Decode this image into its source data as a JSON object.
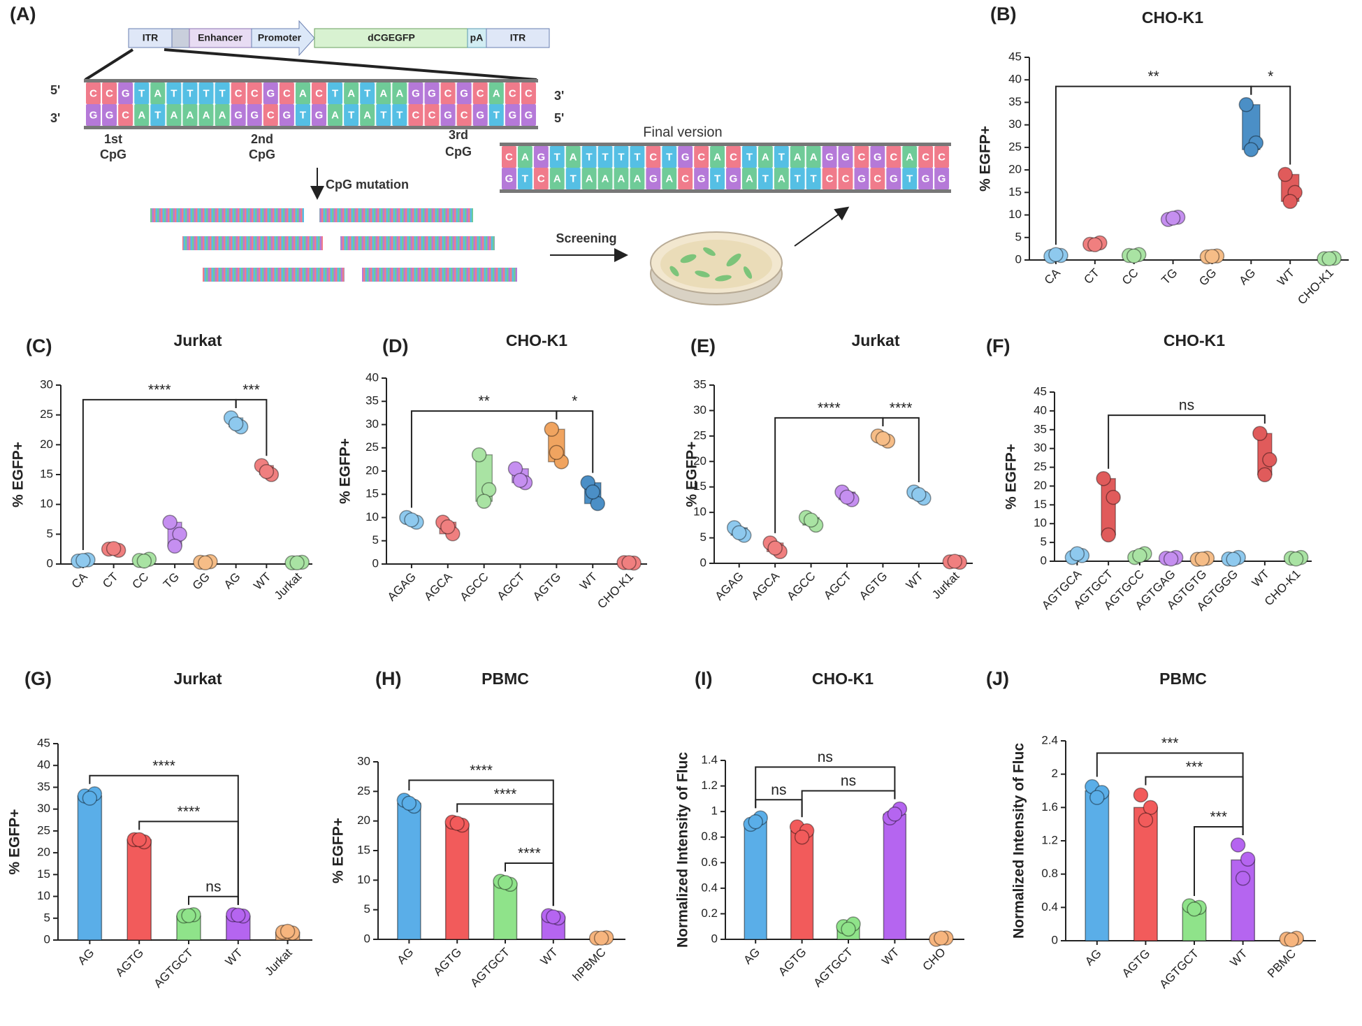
{
  "diagram": {
    "panel": "(A)",
    "vector": [
      "ITR",
      "Enhancer",
      "Promoter",
      "dCGEGFP",
      "pA",
      "ITR"
    ],
    "ends": {
      "top_left": "5'",
      "bottom_left": "3'",
      "top_right": "3'",
      "bottom_right": "5'"
    },
    "cpg_labels": [
      [
        "1st",
        "CpG"
      ],
      [
        "2nd",
        "CpG"
      ],
      [
        "3rd",
        "CpG"
      ]
    ],
    "mutation_label": "CpG mutation",
    "screening_label": "Screening",
    "final_label": "Final version",
    "base_colors": {
      "A": "#6fcb98",
      "T": "#55bfe4",
      "G": "#b579d8",
      "C": "#f07b8b"
    },
    "original_top": [
      "C",
      "C",
      "G",
      "T",
      "A",
      "T",
      "T",
      "T",
      "T",
      "C",
      "C",
      "G",
      "C",
      "A",
      "C",
      "T",
      "A",
      "T",
      "A",
      "A",
      "G",
      "G",
      "C",
      "G",
      "C",
      "A",
      "C",
      "C"
    ],
    "original_bottom": [
      "G",
      "G",
      "C",
      "A",
      "T",
      "A",
      "A",
      "A",
      "A",
      "G",
      "G",
      "C",
      "G",
      "T",
      "G",
      "A",
      "T",
      "A",
      "T",
      "T",
      "C",
      "C",
      "G",
      "C",
      "G",
      "T",
      "G",
      "G"
    ],
    "final_top": [
      "C",
      "A",
      "G",
      "T",
      "A",
      "T",
      "T",
      "T",
      "T",
      "C",
      "T",
      "G",
      "C",
      "A",
      "C",
      "T",
      "A",
      "T",
      "A",
      "A",
      "G",
      "G",
      "C",
      "G",
      "C",
      "A",
      "C",
      "C"
    ],
    "final_bottom": [
      "G",
      "T",
      "C",
      "A",
      "T",
      "A",
      "A",
      "A",
      "A",
      "G",
      "A",
      "C",
      "G",
      "T",
      "G",
      "A",
      "T",
      "A",
      "T",
      "T",
      "C",
      "C",
      "G",
      "C",
      "G",
      "T",
      "G",
      "G"
    ]
  },
  "chart_data": [
    {
      "type": "box",
      "panel": "(B)",
      "title": "CHO-K1",
      "ylabel": "% EGFP+",
      "categories": [
        "CA",
        "CT",
        "CC",
        "TG",
        "GG",
        "AG",
        "WT",
        "CHO-K1"
      ],
      "colors": [
        "#8ec9ee",
        "#f07f7f",
        "#a9e3a3",
        "#c58ff0",
        "#f6bd87",
        "#4b8fc6",
        "#e05b5b",
        "#a9e3a3"
      ],
      "points": [
        [
          0.8,
          1,
          1.2
        ],
        [
          3.5,
          3.8,
          3.4
        ],
        [
          1,
          1.2,
          0.9
        ],
        [
          9,
          9.5,
          9.3
        ],
        [
          0.7,
          0.9,
          0.8
        ],
        [
          34.5,
          26,
          24.5
        ],
        [
          19,
          15,
          13
        ],
        [
          0.3,
          0.4,
          0.3
        ]
      ],
      "ylim": [
        0,
        45
      ],
      "yticks": [
        0,
        5,
        10,
        15,
        20,
        25,
        30,
        35,
        40,
        45
      ],
      "brackets": [
        {
          "from": "CA",
          "to": "AG",
          "label": "**"
        },
        {
          "from": "AG",
          "to": "WT",
          "label": "*"
        }
      ]
    },
    {
      "type": "box",
      "panel": "(C)",
      "title": "Jurkat",
      "ylabel": "% EGFP+",
      "categories": [
        "CA",
        "CT",
        "CC",
        "TG",
        "GG",
        "AG",
        "WT",
        "Jurkat"
      ],
      "colors": [
        "#8ec9ee",
        "#f07f7f",
        "#a9e3a3",
        "#c58ff0",
        "#f6bd87",
        "#8ec9ee",
        "#f07f7f",
        "#a9e3a3"
      ],
      "points": [
        [
          0.5,
          0.7,
          0.6
        ],
        [
          2.5,
          2.3,
          2.6
        ],
        [
          0.6,
          0.8,
          0.5
        ],
        [
          7,
          5,
          3
        ],
        [
          0.3,
          0.4,
          0.2
        ],
        [
          24.5,
          23,
          23.5
        ],
        [
          16.5,
          15,
          15.5
        ],
        [
          0.2,
          0.3,
          0.2
        ]
      ],
      "ylim": [
        0,
        30
      ],
      "yticks": [
        0,
        5,
        10,
        15,
        20,
        25,
        30
      ],
      "brackets": [
        {
          "from": "CA",
          "to": "AG",
          "label": "****"
        },
        {
          "from": "AG",
          "to": "WT",
          "label": "***"
        }
      ]
    },
    {
      "type": "box",
      "panel": "(D)",
      "title": "CHO-K1",
      "ylabel": "% EGFP+",
      "categories": [
        "AGAG",
        "AGCA",
        "AGCC",
        "AGCT",
        "AGTG",
        "WT",
        "CHO-K1"
      ],
      "colors": [
        "#8ec9ee",
        "#f07f7f",
        "#a9e3a3",
        "#c58ff0",
        "#f0a460",
        "#4b8fc6",
        "#f07f7f"
      ],
      "points": [
        [
          10,
          9,
          9.5
        ],
        [
          9,
          6.5,
          8
        ],
        [
          23.5,
          16,
          13.5
        ],
        [
          20.5,
          17.5,
          18
        ],
        [
          29,
          22,
          24
        ],
        [
          17.5,
          13,
          15.5
        ],
        [
          0.3,
          0.2,
          0.3
        ]
      ],
      "ylim": [
        0,
        40
      ],
      "yticks": [
        0,
        5,
        10,
        15,
        20,
        25,
        30,
        35,
        40
      ],
      "brackets": [
        {
          "from": "AGAG",
          "to": "AGTG",
          "label": "**"
        },
        {
          "from": "AGTG",
          "to": "WT",
          "label": "*"
        }
      ]
    },
    {
      "type": "box",
      "panel": "(E)",
      "title": "Jurkat",
      "ylabel": "% EGFP+",
      "categories": [
        "AGAG",
        "AGCA",
        "AGCC",
        "AGCT",
        "AGTG",
        "WT",
        "Jurkat"
      ],
      "colors": [
        "#8ec9ee",
        "#f07f7f",
        "#a9e3a3",
        "#c58ff0",
        "#f6bd87",
        "#8ec9ee",
        "#f07f7f"
      ],
      "points": [
        [
          7,
          5.5,
          6
        ],
        [
          4,
          2.3,
          3
        ],
        [
          9,
          7.5,
          8.5
        ],
        [
          14,
          12.5,
          13
        ],
        [
          25,
          24,
          24.5
        ],
        [
          14,
          12.8,
          13.5
        ],
        [
          0.3,
          0.2,
          0.4
        ]
      ],
      "ylim": [
        0,
        35
      ],
      "yticks": [
        0,
        5,
        10,
        15,
        20,
        25,
        30,
        35
      ],
      "brackets": [
        {
          "from": "AGCA",
          "to": "AGTG",
          "label": "****"
        },
        {
          "from": "AGTG",
          "to": "WT",
          "label": "****"
        }
      ]
    },
    {
      "type": "box",
      "panel": "(F)",
      "title": "CHO-K1",
      "ylabel": "% EGFP+",
      "categories": [
        "AGTGCA",
        "AGTGCT",
        "AGTGCC",
        "AGTGAG",
        "AGTGTG",
        "AGTGGG",
        "WT",
        "CHO-K1"
      ],
      "colors": [
        "#8ec9ee",
        "#e05b5b",
        "#a9e3a3",
        "#c58ff0",
        "#f6bd87",
        "#8ec9ee",
        "#e05b5b",
        "#a9e3a3"
      ],
      "points": [
        [
          1,
          1.5,
          2
        ],
        [
          22,
          17,
          7
        ],
        [
          1,
          2,
          1.5
        ],
        [
          0.8,
          1,
          0.6
        ],
        [
          0.5,
          0.8,
          0.6
        ],
        [
          0.6,
          1,
          0.5
        ],
        [
          34,
          27,
          23
        ],
        [
          0.8,
          1,
          0.6
        ]
      ],
      "ylim": [
        0,
        45
      ],
      "yticks": [
        0,
        5,
        10,
        15,
        20,
        25,
        30,
        35,
        40,
        45
      ],
      "brackets": [
        {
          "from": "AGTGCT",
          "to": "WT",
          "label": "ns"
        }
      ]
    },
    {
      "type": "bar",
      "panel": "(G)",
      "title": "Jurkat",
      "ylabel": "% EGFP+",
      "categories": [
        "AG",
        "AGTG",
        "AGTGCT",
        "WT",
        "Jurkat"
      ],
      "colors": [
        "#5aaee8",
        "#f25b5b",
        "#8fe38a",
        "#b565f0",
        "#f7b57e"
      ],
      "values": [
        33,
        23,
        5.5,
        5.5,
        1.8
      ],
      "points": [
        [
          33,
          33.5,
          32.5
        ],
        [
          23,
          22.5,
          23
        ],
        [
          5.5,
          5.8,
          5.6
        ],
        [
          5.8,
          5.5,
          5.7
        ],
        [
          1.8,
          1.6,
          2
        ]
      ],
      "ylim": [
        0,
        45
      ],
      "yticks": [
        0,
        5,
        10,
        15,
        20,
        25,
        30,
        35,
        40,
        45
      ],
      "brackets": [
        {
          "from": "AG",
          "to": "WT",
          "label": "****"
        },
        {
          "from": "AGTG",
          "to": "WT",
          "label": "****"
        },
        {
          "from": "AGTGCT",
          "to": "WT",
          "label": "ns"
        }
      ]
    },
    {
      "type": "bar",
      "panel": "(H)",
      "title": "PBMC",
      "ylabel": "% EGFP+",
      "categories": [
        "AG",
        "AGTG",
        "AGTGCT",
        "WT",
        "hPBMC"
      ],
      "colors": [
        "#5aaee8",
        "#f25b5b",
        "#8fe38a",
        "#b565f0",
        "#f7b57e"
      ],
      "values": [
        23,
        19.5,
        9.5,
        3.8,
        0.2
      ],
      "points": [
        [
          23.5,
          22.5,
          23
        ],
        [
          19.8,
          19.3,
          19.6
        ],
        [
          9.8,
          9.3,
          9.6
        ],
        [
          4,
          3.6,
          3.8
        ],
        [
          0.2,
          0.3,
          0.2
        ]
      ],
      "ylim": [
        0,
        30
      ],
      "yticks": [
        0,
        5,
        10,
        15,
        20,
        25,
        30
      ],
      "brackets": [
        {
          "from": "AG",
          "to": "WT",
          "label": "****"
        },
        {
          "from": "AGTG",
          "to": "WT",
          "label": "****"
        },
        {
          "from": "AGTGCT",
          "to": "WT",
          "label": "****"
        }
      ]
    },
    {
      "type": "bar",
      "panel": "(I)",
      "title": "CHO-K1",
      "ylabel": "Normalized Intensity of Fluc",
      "categories": [
        "AG",
        "AGTG",
        "AGTGCT",
        "WT",
        "CHO"
      ],
      "colors": [
        "#5aaee8",
        "#f25b5b",
        "#8fe38a",
        "#b565f0",
        "#f7b57e"
      ],
      "values": [
        0.92,
        0.85,
        0.1,
        0.98,
        0.01
      ],
      "points": [
        [
          0.9,
          0.95,
          0.92
        ],
        [
          0.88,
          0.85,
          0.8
        ],
        [
          0.1,
          0.12,
          0.08
        ],
        [
          0.95,
          1.02,
          0.98
        ],
        [
          0,
          0.01,
          0.01
        ]
      ],
      "ylim": [
        0,
        1.4
      ],
      "yticks": [
        0,
        0.2,
        0.4,
        0.6,
        0.8,
        1,
        1.2,
        1.4
      ],
      "brackets": [
        {
          "from": "AG",
          "to": "AGTG",
          "label": "ns"
        },
        {
          "from": "AGTG",
          "to": "WT",
          "label": "ns"
        },
        {
          "from": "AG",
          "to": "WT",
          "label": "ns"
        }
      ]
    },
    {
      "type": "bar",
      "panel": "(J)",
      "title": "PBMC",
      "ylabel": "Normalized Intensity of Fluc",
      "categories": [
        "AG",
        "AGTG",
        "AGTGCT",
        "WT",
        "PBMC"
      ],
      "colors": [
        "#5aaee8",
        "#f25b5b",
        "#8fe38a",
        "#b565f0",
        "#f7b57e"
      ],
      "values": [
        1.8,
        1.6,
        0.4,
        0.97,
        0.02
      ],
      "points": [
        [
          1.85,
          1.78,
          1.72
        ],
        [
          1.75,
          1.6,
          1.45
        ],
        [
          0.42,
          0.4,
          0.38
        ],
        [
          1.15,
          0.98,
          0.75
        ],
        [
          0.02,
          0.03,
          0.01
        ]
      ],
      "ylim": [
        0,
        2.4
      ],
      "yticks": [
        0,
        0.4,
        0.8,
        1.2,
        1.6,
        2,
        2.4
      ],
      "brackets": [
        {
          "from": "AG",
          "to": "WT",
          "label": "***"
        },
        {
          "from": "AGTG",
          "to": "WT",
          "label": "***"
        },
        {
          "from": "AGTGCT",
          "to": "WT",
          "label": "***"
        }
      ]
    }
  ]
}
